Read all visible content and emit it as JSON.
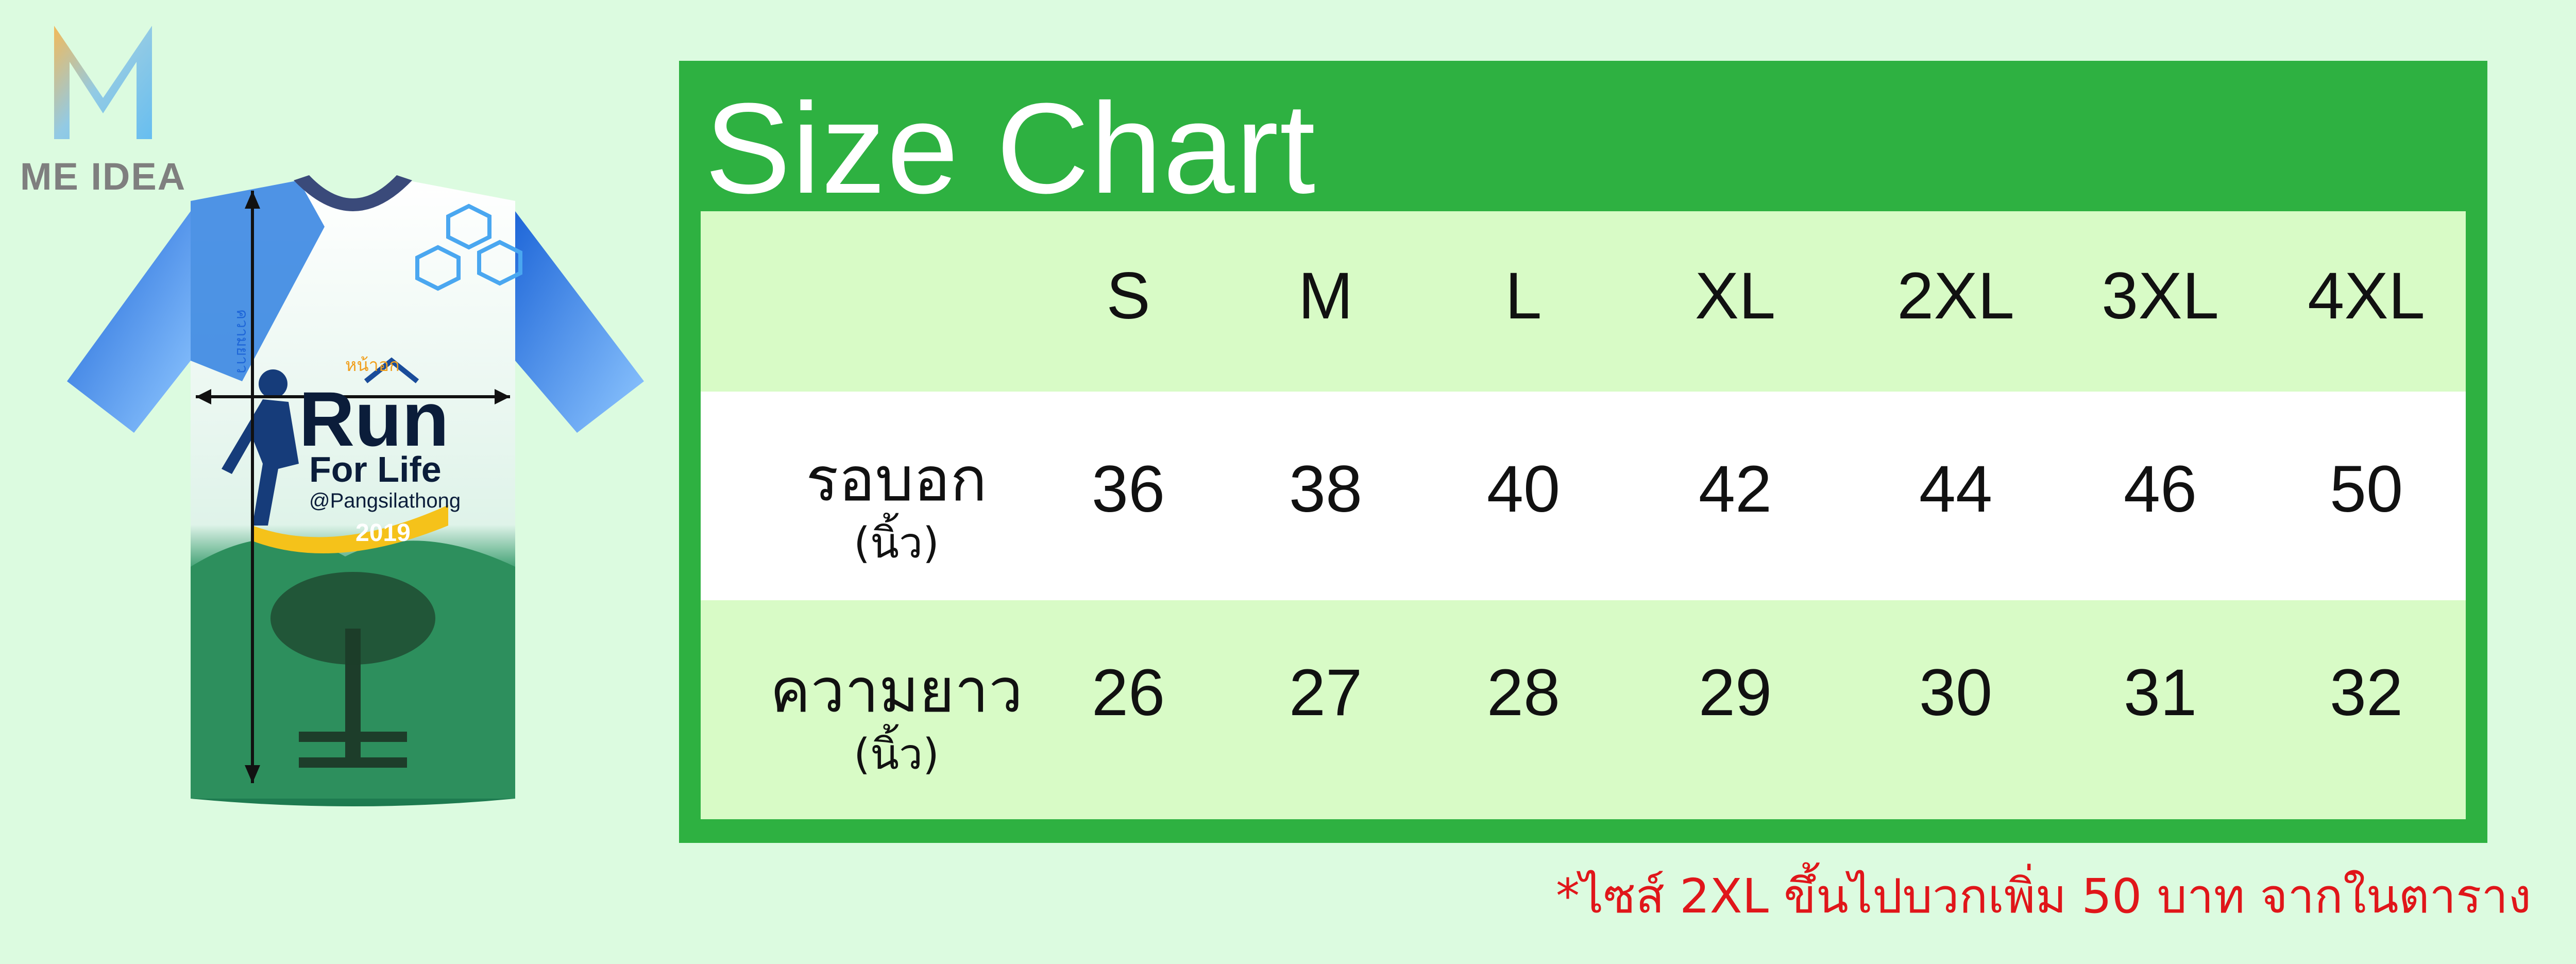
{
  "brand": {
    "name": "ME IDEA"
  },
  "shirt": {
    "title_line1": "Run",
    "title_line2": "For Life",
    "handle": "@Pangsilathong",
    "year": "2019",
    "chest_marker": "หน้าอก",
    "length_marker": "ความยาว"
  },
  "size_chart": {
    "title": "Size Chart",
    "sizes": [
      "S",
      "M",
      "L",
      "XL",
      "2XL",
      "3XL",
      "4XL"
    ],
    "rows": [
      {
        "label": "รอบอก",
        "unit": "(นิ้ว)",
        "values": [
          "36",
          "38",
          "40",
          "42",
          "44",
          "46",
          "50"
        ]
      },
      {
        "label": "ความยาว",
        "unit": "(นิ้ว)",
        "values": [
          "26",
          "27",
          "28",
          "29",
          "30",
          "31",
          "32"
        ]
      }
    ]
  },
  "note": "*ไซส์ 2XL ขึ้นไปบวกเพิ่ม 50 บาท จากในตาราง",
  "colors": {
    "background": "#dcfbe0",
    "panel_green": "#2eb141",
    "row_light_green": "#d8fbc6",
    "row_white": "#ffffff",
    "note_red": "#e0161a"
  }
}
